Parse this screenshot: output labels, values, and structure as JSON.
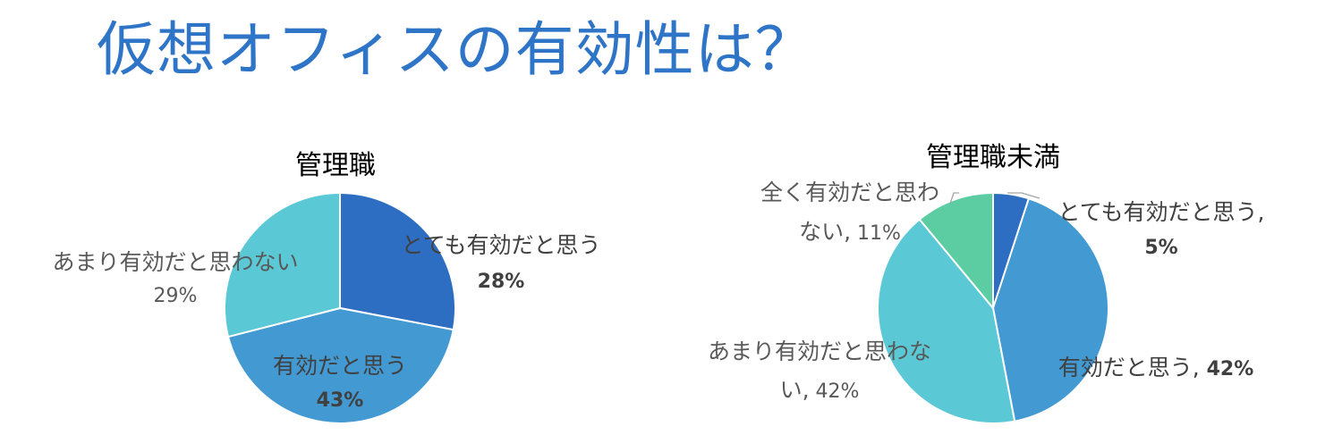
{
  "page": {
    "title": "仮想オフィスの有効性は？"
  },
  "chart_data": [
    {
      "type": "pie",
      "title": "管理職",
      "start_angle_deg": 0,
      "direction": "clockwise",
      "slices": [
        {
          "label": "とても有効だと思う",
          "value": 28,
          "value_label": "28%",
          "color": "#2e6ec2",
          "label_color": "#404040",
          "value_bold": true
        },
        {
          "label": "有効だと思う",
          "value": 43,
          "value_label": "43%",
          "color": "#4399d2",
          "label_color": "#404040",
          "value_bold": true
        },
        {
          "label": "あまり有効だと思わない",
          "value": 29,
          "value_label": "29%",
          "color": "#5bc8d6",
          "label_color": "#595959",
          "value_bold": false
        }
      ]
    },
    {
      "type": "pie",
      "title": "管理職未満",
      "start_angle_deg": 0,
      "direction": "clockwise",
      "slices": [
        {
          "label": "とても有効だと思う,",
          "value": 5,
          "value_label": "5%",
          "color": "#2e6ec2",
          "label_color": "#404040",
          "value_bold": true
        },
        {
          "label": "有効だと思う,",
          "value": 42,
          "value_label": "42%",
          "color": "#4399d2",
          "label_color": "#404040",
          "value_bold": true
        },
        {
          "label": "あまり有効だと思わな",
          "label_line2": "い,",
          "value": 42,
          "value_label": "42%",
          "color": "#5bc8d6",
          "label_color": "#595959",
          "value_bold": false
        },
        {
          "label": "全く有効だと思わ",
          "label_line2": "ない,",
          "value": 11,
          "value_label": "11%",
          "color": "#5ccda2",
          "label_color": "#595959",
          "value_bold": false
        }
      ]
    }
  ]
}
